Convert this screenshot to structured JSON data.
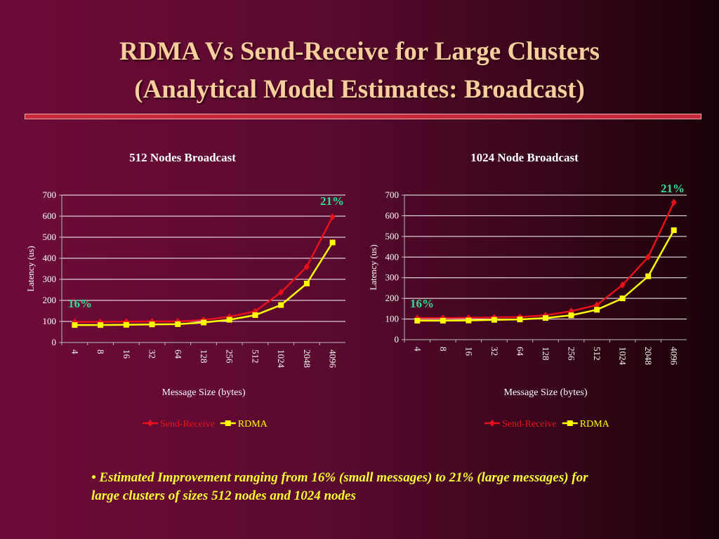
{
  "title": [
    "RDMA Vs Send-Receive for Large Clusters",
    "(Analytical Model Estimates: Broadcast)"
  ],
  "chart_data": [
    {
      "type": "line",
      "title": "512 Nodes Broadcast",
      "y_label": "Latency (us)",
      "x_label": "Message Size (bytes)",
      "categories": [
        "4",
        "8",
        "16",
        "32",
        "64",
        "128",
        "256",
        "512",
        "1024",
        "2048",
        "4096"
      ],
      "series": [
        {
          "name": "Send-Receive",
          "color": "#e8101a",
          "marker": "diamond",
          "values": [
            98,
            98,
            99,
            100,
            100,
            107,
            122,
            148,
            238,
            360,
            597
          ]
        },
        {
          "name": "RDMA",
          "color": "#ffff00",
          "marker": "square",
          "values": [
            83,
            83,
            84,
            86,
            87,
            95,
            108,
            130,
            178,
            280,
            475
          ]
        }
      ],
      "ylim": [
        0,
        700
      ],
      "yticks": [
        0,
        100,
        200,
        300,
        400,
        500,
        600,
        700
      ],
      "grid": true,
      "annotations": [
        "16%",
        "21%"
      ]
    },
    {
      "type": "line",
      "title": "1024 Node Broadcast",
      "y_label": "Latency (us)",
      "x_label": "Message Size (bytes)",
      "categories": [
        "4",
        "8",
        "16",
        "32",
        "64",
        "128",
        "256",
        "512",
        "1024",
        "2048",
        "4096"
      ],
      "series": [
        {
          "name": "Send-Receive",
          "color": "#e8101a",
          "marker": "diamond",
          "values": [
            105,
            105,
            106,
            108,
            110,
            118,
            138,
            168,
            265,
            400,
            665
          ]
        },
        {
          "name": "RDMA",
          "color": "#ffff00",
          "marker": "square",
          "values": [
            92,
            92,
            93,
            96,
            98,
            105,
            118,
            145,
            200,
            307,
            530
          ]
        }
      ],
      "ylim": [
        0,
        700
      ],
      "yticks": [
        0,
        100,
        200,
        300,
        400,
        500,
        600,
        700
      ],
      "grid": true,
      "annotations": [
        "16%",
        "21%"
      ]
    }
  ],
  "note": "• Estimated Improvement ranging from 16% (small messages) to 21% (large messages) for large clusters of sizes 512 nodes and 1024 nodes"
}
